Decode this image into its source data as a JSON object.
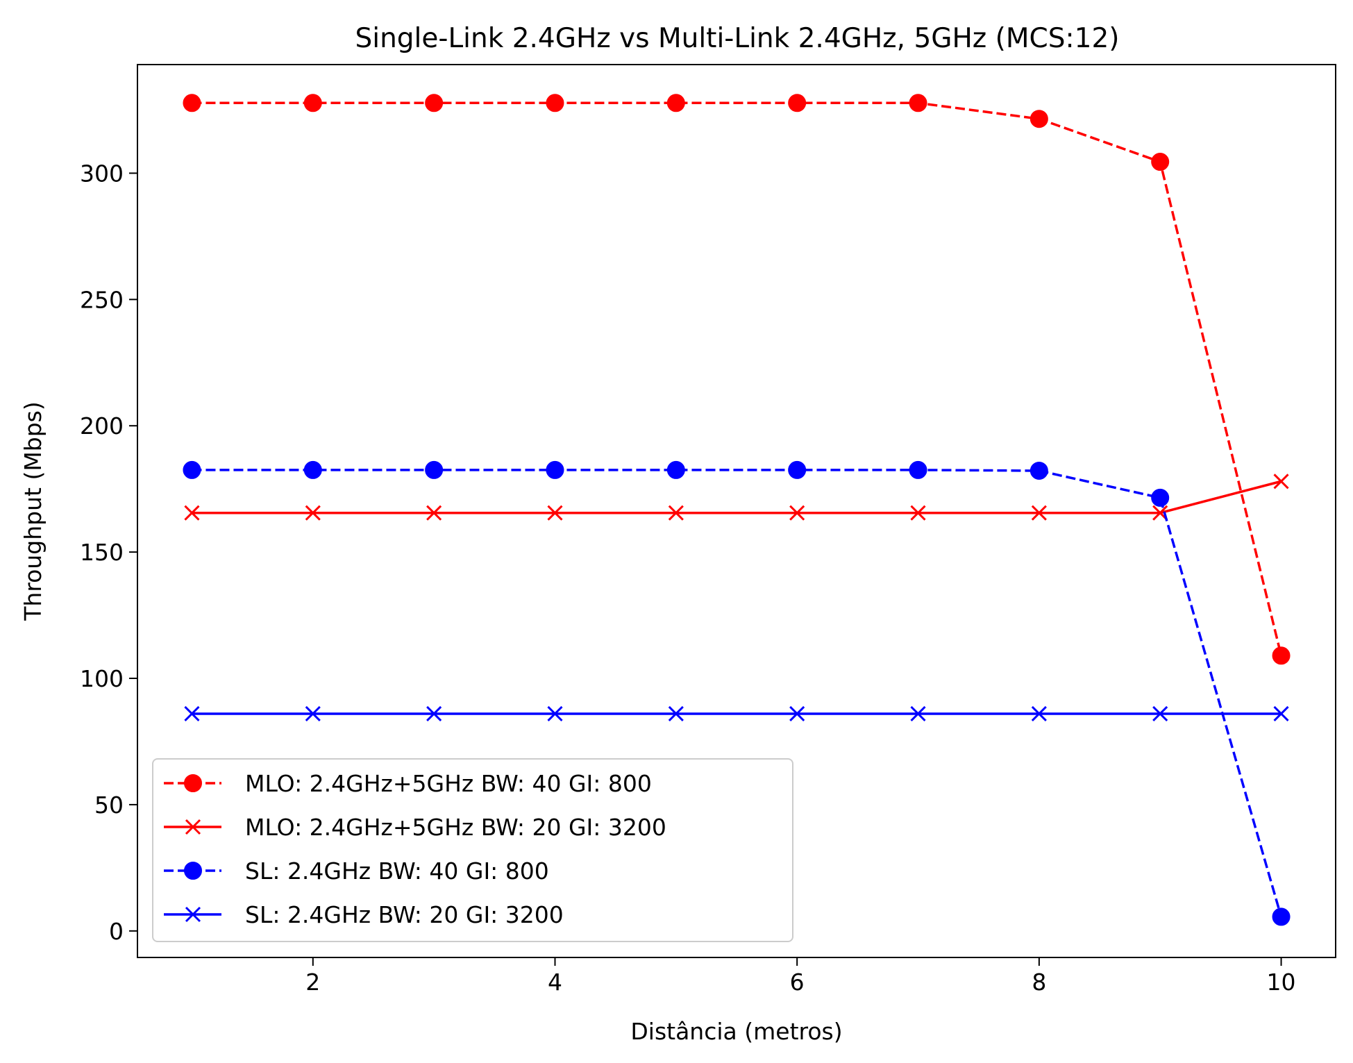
{
  "chart_data": {
    "type": "line",
    "title": "Single-Link 2.4GHz vs Multi-Link 2.4GHz, 5GHz (MCS:12)",
    "xlabel": "Distância (metros)",
    "ylabel": "Throughput (Mbps)",
    "x": [
      1,
      2,
      3,
      4,
      5,
      6,
      7,
      8,
      9,
      10
    ],
    "xlim": [
      0.55,
      10.45
    ],
    "ylim": [
      -10.5,
      343
    ],
    "xticks": [
      2,
      4,
      6,
      8,
      10
    ],
    "yticks": [
      0,
      50,
      100,
      150,
      200,
      250,
      300
    ],
    "grid": false,
    "legend_position": "lower-left",
    "series": [
      {
        "name": "MLO: 2.4GHz+5GHz BW: 40 GI: 800",
        "color": "#ff0000",
        "line_style": "dashed",
        "marker": "circle",
        "values": [
          327.8,
          327.8,
          327.8,
          327.8,
          327.8,
          327.8,
          327.8,
          321.5,
          304.5,
          109.0
        ]
      },
      {
        "name": "MLO: 2.4GHz+5GHz BW: 20 GI: 3200",
        "color": "#ff0000",
        "line_style": "solid",
        "marker": "x",
        "values": [
          165.5,
          165.5,
          165.5,
          165.5,
          165.5,
          165.5,
          165.5,
          165.5,
          165.5,
          178.0
        ]
      },
      {
        "name": "SL: 2.4GHz BW: 40 GI: 800",
        "color": "#0000ff",
        "line_style": "dashed",
        "marker": "circle",
        "values": [
          182.5,
          182.5,
          182.5,
          182.5,
          182.5,
          182.5,
          182.5,
          182.2,
          171.5,
          5.6
        ]
      },
      {
        "name": "SL: 2.4GHz BW: 20 GI: 3200",
        "color": "#0000ff",
        "line_style": "solid",
        "marker": "x",
        "values": [
          86.0,
          86.0,
          86.0,
          86.0,
          86.0,
          86.0,
          86.0,
          86.0,
          86.0,
          86.0
        ]
      }
    ]
  }
}
